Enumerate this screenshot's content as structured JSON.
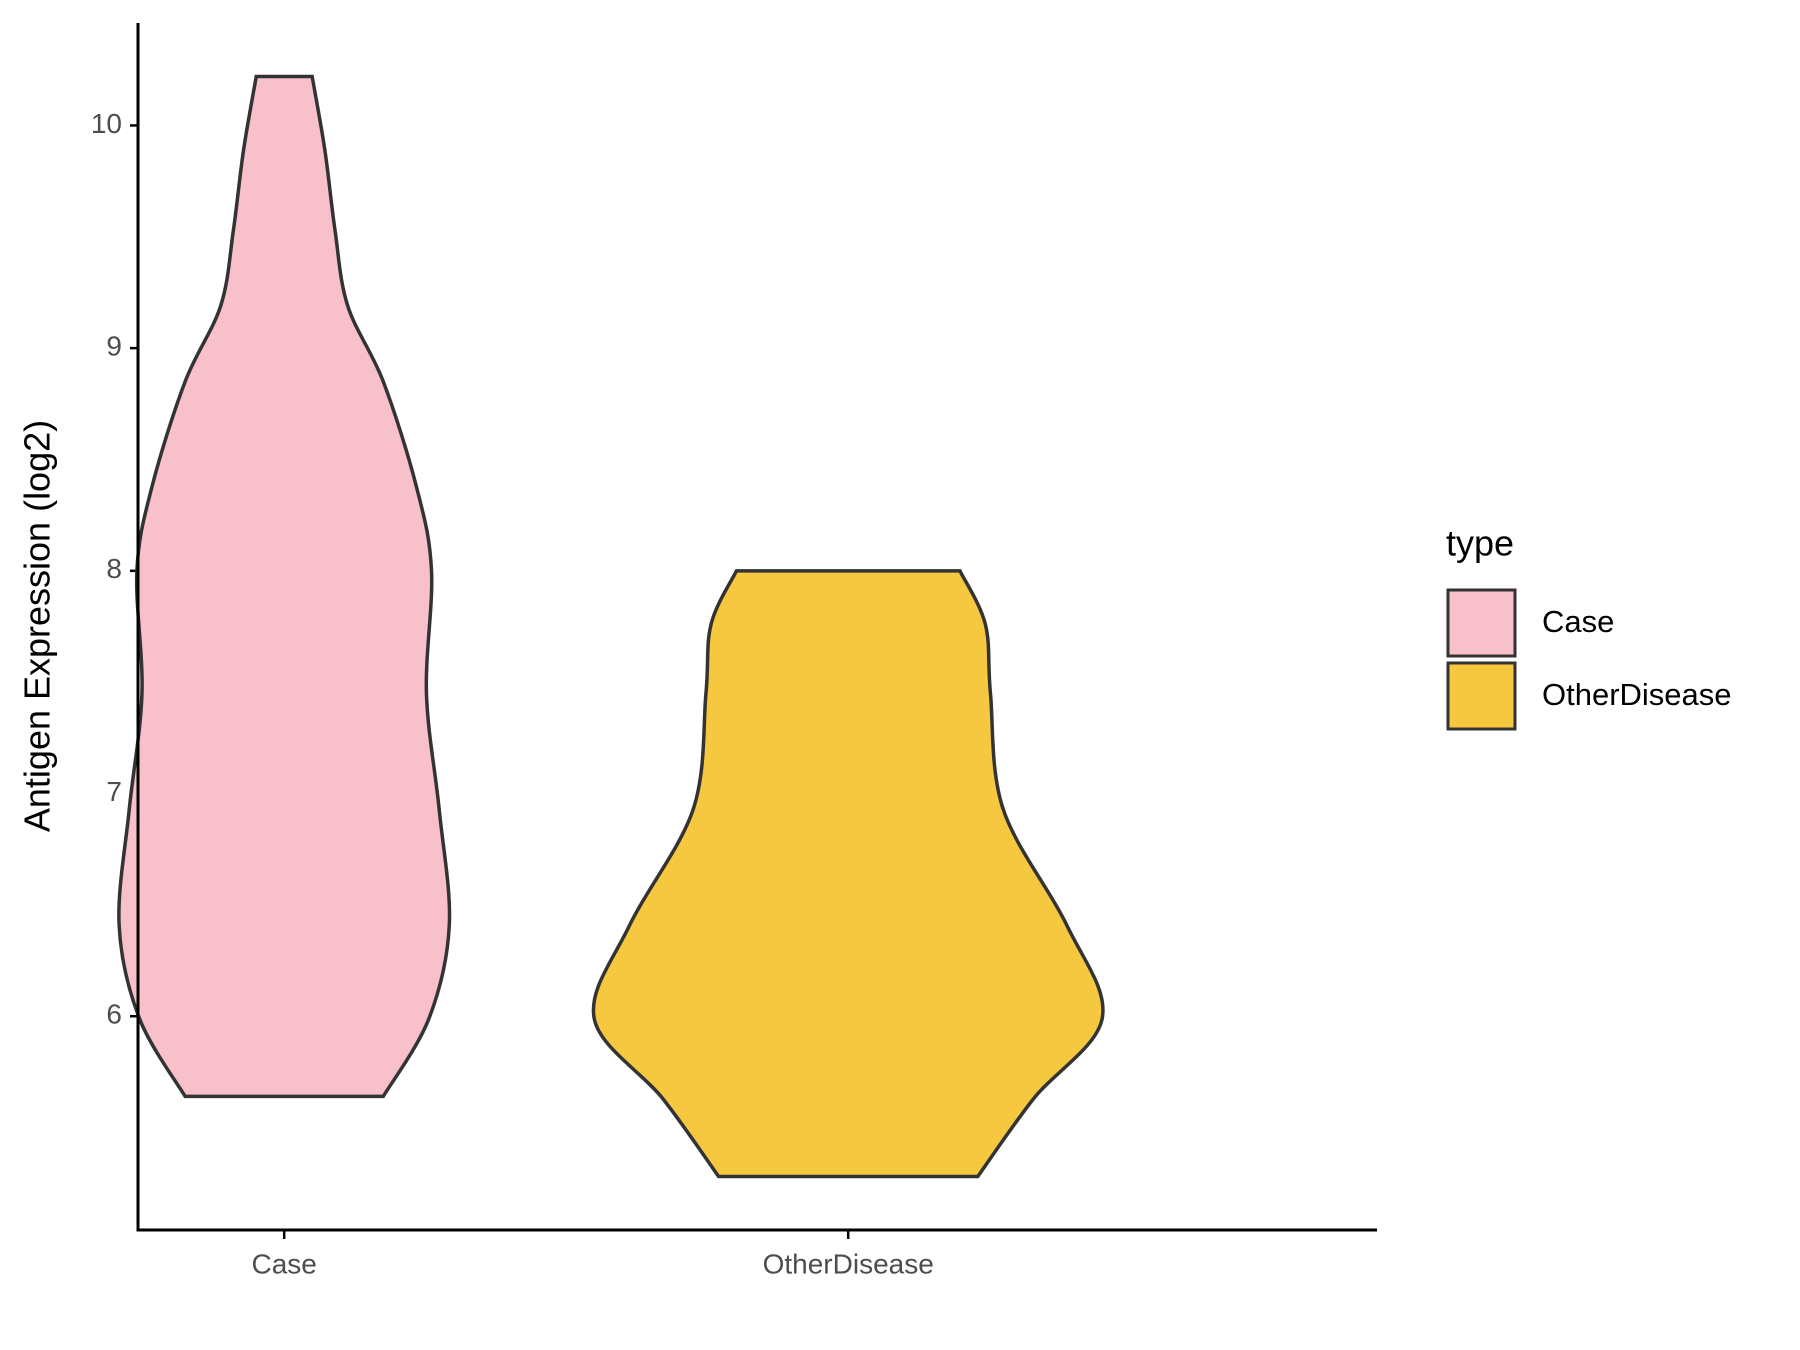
{
  "chart_data": {
    "type": "violin",
    "y_label": "Antigen Expression (log2)",
    "categories": [
      "Case",
      "OtherDisease"
    ],
    "ylim": [
      5.04,
      10.46
    ],
    "yticks": [
      6,
      7,
      8,
      9,
      10
    ],
    "legend_title": "type",
    "legend": "right",
    "series": [
      {
        "name": "Case",
        "color": "#f7c0cb",
        "y": [
          5.64,
          5.99,
          6.41,
          6.93,
          7.45,
          8.0,
          8.38,
          8.85,
          9.19,
          9.53,
          9.89,
          10.22
        ],
        "width": [
          0.39,
          0.57,
          0.65,
          0.61,
          0.56,
          0.58,
          0.52,
          0.39,
          0.25,
          0.2,
          0.16,
          0.11
        ]
      },
      {
        "name": "OtherDisease",
        "color": "#f6c83f",
        "y": [
          5.28,
          5.63,
          5.99,
          6.41,
          6.93,
          7.45,
          7.76,
          8.0
        ],
        "width": [
          0.51,
          0.73,
          1.0,
          0.86,
          0.61,
          0.56,
          0.54,
          0.44
        ]
      }
    ]
  }
}
